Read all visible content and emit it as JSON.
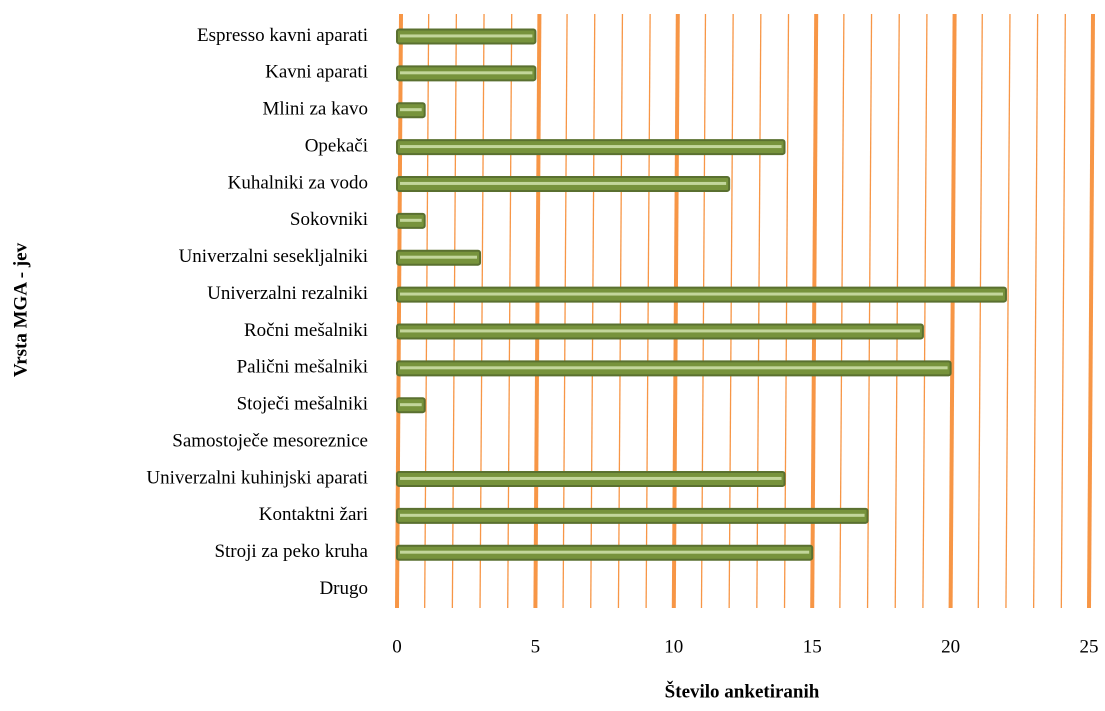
{
  "chart_data": {
    "type": "barh",
    "x_label": "Število anketiranih",
    "y_label": "Vrsta MGA - jev",
    "categories": [
      "Espresso kavni aparati",
      "Kavni aparati",
      "Mlini za kavo",
      "Opekači",
      "Kuhalniki za vodo",
      "Sokovniki",
      "Univerzalni sesekljalniki",
      "Univerzalni rezalniki",
      "Ročni mešalniki",
      "Palični mešalniki",
      "Stoječi mešalniki",
      "Samostoječe mesoreznice",
      "Univerzalni kuhinjski aparati",
      "Kontaktni žari",
      "Stroji za peko kruha",
      "Drugo"
    ],
    "values": [
      5,
      5,
      1,
      14,
      12,
      1,
      3,
      22,
      19,
      20,
      1,
      0,
      14,
      17,
      15,
      0
    ],
    "color": "#77933c",
    "grid_color": "#f79646",
    "xlim": [
      0,
      25
    ],
    "xticks": [
      0,
      5,
      10,
      15,
      20,
      25
    ],
    "minor_xticks": [
      1,
      2,
      3,
      4,
      6,
      7,
      8,
      9,
      11,
      12,
      13,
      14,
      16,
      17,
      18,
      19,
      21,
      22,
      23,
      24
    ],
    "grid": true
  }
}
